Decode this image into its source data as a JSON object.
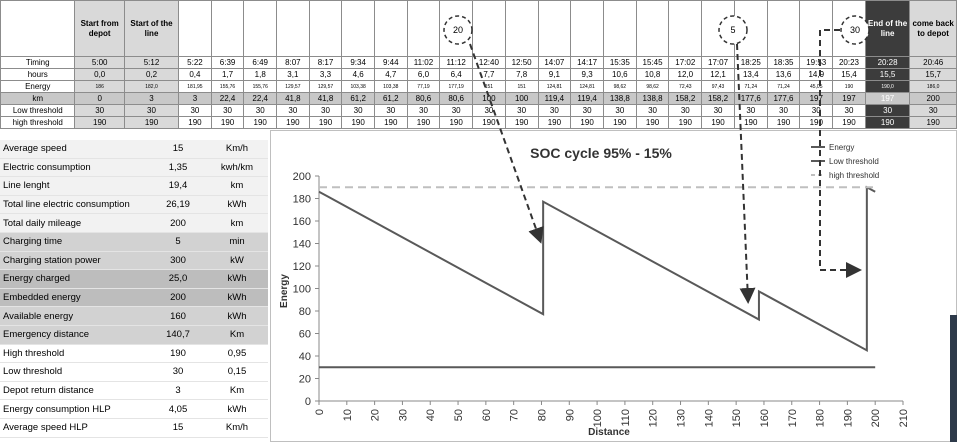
{
  "schedule_table": {
    "columns": [
      null,
      "Start from depot",
      "Start of the line",
      null,
      null,
      null,
      null,
      null,
      null,
      null,
      null,
      null,
      null,
      null,
      null,
      null,
      null,
      null,
      null,
      null,
      null,
      null,
      null,
      null,
      "End of the line",
      "come back to depot"
    ],
    "rows": [
      {
        "label": "Timing",
        "cells": [
          "5:00",
          "5:12",
          "5:22",
          "6:39",
          "6:49",
          "8:07",
          "8:17",
          "9:34",
          "9:44",
          "11:02",
          "11:12",
          "12:40",
          "12:50",
          "14:07",
          "14:17",
          "15:35",
          "15:45",
          "17:02",
          "17:07",
          "18:25",
          "18:35",
          "19:53",
          "20:23",
          "20:28",
          "20:46"
        ]
      },
      {
        "label": "hours",
        "cells": [
          "0,0",
          "0,2",
          "0,4",
          "1,7",
          "1,8",
          "3,1",
          "3,3",
          "4,6",
          "4,7",
          "6,0",
          "6,4",
          "7,7",
          "7,8",
          "9,1",
          "9,3",
          "10,6",
          "10,8",
          "12,0",
          "12,1",
          "13,4",
          "13,6",
          "14,9",
          "15,4",
          "15,5",
          "15,7"
        ]
      },
      {
        "label": "Energy",
        "cells": [
          "186",
          "182,0",
          "181,95",
          "155,76",
          "155,76",
          "129,57",
          "129,57",
          "103,38",
          "103,38",
          "77,19",
          "177,19",
          "151",
          "151",
          "124,81",
          "124,81",
          "98,62",
          "98,62",
          "72,43",
          "97,43",
          "71,24",
          "71,24",
          "45,05",
          "190",
          "190,0",
          "186,0"
        ]
      },
      {
        "label": "km",
        "cells": [
          "0",
          "3",
          "3",
          "22,4",
          "22,4",
          "41,8",
          "41,8",
          "61,2",
          "61,2",
          "80,6",
          "80,6",
          "100",
          "100",
          "119,4",
          "119,4",
          "138,8",
          "138,8",
          "158,2",
          "158,2",
          "177,6",
          "177,6",
          "197",
          "197",
          "197",
          "200"
        ]
      },
      {
        "label": "Low threshold",
        "cells": [
          "30",
          "30",
          "30",
          "30",
          "30",
          "30",
          "30",
          "30",
          "30",
          "30",
          "30",
          "30",
          "30",
          "30",
          "30",
          "30",
          "30",
          "30",
          "30",
          "30",
          "30",
          "30",
          "30",
          "30",
          "30"
        ]
      },
      {
        "label": "high threshold",
        "cells": [
          "190",
          "190",
          "190",
          "190",
          "190",
          "190",
          "190",
          "190",
          "190",
          "190",
          "190",
          "190",
          "190",
          "190",
          "190",
          "190",
          "190",
          "190",
          "190",
          "190",
          "190",
          "190",
          "190",
          "190",
          "190"
        ]
      }
    ]
  },
  "callouts": [
    "20",
    "5",
    "30"
  ],
  "params_table": {
    "rows": [
      [
        "Average speed",
        "15",
        "Km/h"
      ],
      [
        "Electric consumption",
        "1,35",
        "kwh/km"
      ],
      [
        "Line lenght",
        "19,4",
        "km"
      ],
      [
        "Total line electric consumption",
        "26,19",
        "kWh"
      ],
      [
        "Total daily mileage",
        "200",
        "km"
      ],
      [
        "Charging time",
        "5",
        "min"
      ],
      [
        "Charging station power",
        "300",
        "kW"
      ],
      [
        "Energy charged",
        "25,0",
        "kWh"
      ],
      [
        "Embedded energy",
        "200",
        "kWh"
      ],
      [
        "Available energy",
        "160",
        "kWh"
      ],
      [
        "Emergency distance",
        "140,7",
        "Km"
      ],
      [
        "High threshold",
        "190",
        "0,95"
      ],
      [
        "Low threshold",
        "30",
        "0,15"
      ],
      [
        "Depot return distance",
        "3",
        "Km"
      ],
      [
        "Energy consumption HLP",
        "4,05",
        "kWh"
      ],
      [
        "Average speed HLP",
        "15",
        "Km/h"
      ]
    ]
  },
  "chart_data": {
    "type": "line",
    "title": "SOC cycle 95% - 15%",
    "xlabel": "Distance",
    "ylabel": "Energy",
    "xlim": [
      0,
      210
    ],
    "xticks": [
      0,
      10,
      20,
      30,
      40,
      50,
      60,
      70,
      80,
      90,
      100,
      110,
      120,
      130,
      140,
      150,
      160,
      170,
      180,
      190,
      200,
      210
    ],
    "ylim": [
      0,
      200
    ],
    "yticks": [
      0,
      20,
      40,
      60,
      80,
      100,
      120,
      140,
      160,
      180,
      200
    ],
    "grid": false,
    "legend": "upper right",
    "series": [
      {
        "name": "Energy",
        "color": "#595959",
        "dashed": false,
        "x": [
          0,
          3,
          22.4,
          41.8,
          61.2,
          80.6,
          80.6,
          100,
          119.4,
          138.8,
          158.2,
          158.2,
          177.6,
          197,
          197,
          200
        ],
        "values": [
          186,
          182,
          155.76,
          129.57,
          103.38,
          77.19,
          177.19,
          151,
          124.81,
          98.62,
          72.43,
          97.43,
          71.24,
          45.05,
          190,
          186
        ]
      },
      {
        "name": "Low threshold",
        "color": "#595959",
        "dashed": false,
        "x": [
          0,
          200
        ],
        "values": [
          30,
          30
        ]
      },
      {
        "name": "high threshold",
        "color": "#bfbfbf",
        "dashed": true,
        "x": [
          0,
          200
        ],
        "values": [
          190,
          190
        ]
      }
    ]
  }
}
